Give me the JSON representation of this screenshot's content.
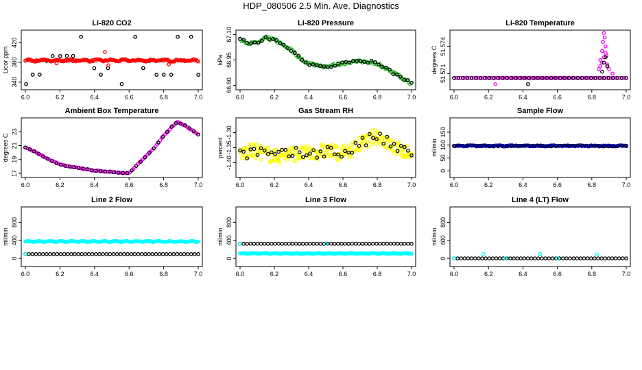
{
  "page": {
    "title": "HDP_080506  2.5 Min. Ave. Diagnostics"
  },
  "colors": {
    "black": "#000000",
    "red": "#ff0000",
    "green": "#22bb22",
    "magenta": "#ff00ff",
    "yellow": "#ffff00",
    "blue": "#0000dd",
    "cyan": "#00ffff"
  },
  "chart_data": [
    {
      "type": "scatter",
      "title": "Li-820 CO2",
      "xlabel": "",
      "ylabel": "Licor ppm",
      "xlim": [
        6.0,
        7.0
      ],
      "ylim": [
        330,
        440
      ],
      "xticks": [
        "6.0",
        "6.2",
        "6.4",
        "6.6",
        "6.8",
        "7.0"
      ],
      "yticks": [
        {
          "v": 340,
          "label": "340"
        },
        {
          "v": 380,
          "label": "380"
        },
        {
          "v": 420,
          "label": "420"
        }
      ],
      "series": [
        {
          "name": "black",
          "color": "black",
          "gen": "levels",
          "levels": [
            336,
            355,
            368,
            383,
            393,
            432
          ],
          "step": 0.04,
          "jitter": 0.6
        },
        {
          "name": "red",
          "color": "red",
          "gen": "band",
          "base": 384,
          "amp": 1.2,
          "noise": 1.5,
          "n": 160
        },
        {
          "name": "red-outliers",
          "color": "red",
          "gen": "points",
          "points": [
            [
              6.46,
              401
            ],
            [
              6.48,
              374
            ],
            [
              6.83,
              376
            ],
            [
              6.18,
              378
            ]
          ]
        }
      ]
    },
    {
      "type": "scatter",
      "title": "Li-820 Pressure",
      "xlabel": "",
      "ylabel": "kPa",
      "xlim": [
        6.0,
        7.0
      ],
      "ylim": [
        66.79,
        67.11
      ],
      "xticks": [
        "6.0",
        "6.2",
        "6.4",
        "6.6",
        "6.8",
        "7.0"
      ],
      "yticks": [
        {
          "v": 66.8,
          "label": "66.80"
        },
        {
          "v": 66.95,
          "label": "66.95"
        },
        {
          "v": 67.1,
          "label": "67.10"
        }
      ],
      "series": [
        {
          "name": "green",
          "color": "green",
          "gen": "curve",
          "n": 120,
          "noise": 0.008,
          "curve": [
            [
              6.0,
              67.07
            ],
            [
              6.05,
              67.05
            ],
            [
              6.1,
              67.05
            ],
            [
              6.15,
              67.08
            ],
            [
              6.2,
              67.07
            ],
            [
              6.25,
              67.04
            ],
            [
              6.3,
              67.01
            ],
            [
              6.35,
              66.96
            ],
            [
              6.4,
              66.93
            ],
            [
              6.45,
              66.92
            ],
            [
              6.5,
              66.91
            ],
            [
              6.55,
              66.92
            ],
            [
              6.6,
              66.93
            ],
            [
              6.65,
              66.94
            ],
            [
              6.7,
              66.94
            ],
            [
              6.75,
              66.94
            ],
            [
              6.8,
              66.93
            ],
            [
              6.85,
              66.9
            ],
            [
              6.9,
              66.87
            ],
            [
              6.95,
              66.84
            ],
            [
              7.0,
              66.81
            ]
          ]
        },
        {
          "name": "black",
          "color": "black",
          "gen": "curve",
          "n": 48,
          "noise": 0.006,
          "offset": 0.01,
          "curve": [
            [
              6.0,
              67.07
            ],
            [
              6.05,
              67.05
            ],
            [
              6.1,
              67.05
            ],
            [
              6.15,
              67.08
            ],
            [
              6.2,
              67.07
            ],
            [
              6.25,
              67.04
            ],
            [
              6.3,
              67.01
            ],
            [
              6.35,
              66.96
            ],
            [
              6.4,
              66.93
            ],
            [
              6.45,
              66.92
            ],
            [
              6.5,
              66.91
            ],
            [
              6.55,
              66.92
            ],
            [
              6.6,
              66.93
            ],
            [
              6.65,
              66.94
            ],
            [
              6.7,
              66.94
            ],
            [
              6.75,
              66.94
            ],
            [
              6.8,
              66.93
            ],
            [
              6.85,
              66.9
            ],
            [
              6.9,
              66.87
            ],
            [
              6.95,
              66.84
            ],
            [
              7.0,
              66.81
            ]
          ]
        }
      ]
    },
    {
      "type": "scatter",
      "title": "Li-820 Temperature",
      "xlabel": "",
      "ylabel": "degrees C",
      "xlim": [
        6.0,
        7.0
      ],
      "ylim": [
        51.5695,
        51.5755
      ],
      "xticks": [
        "6.0",
        "6.2",
        "6.4",
        "6.6",
        "6.8",
        "7.0"
      ],
      "yticks": [
        {
          "v": 51.571,
          "label": "51.571"
        },
        {
          "v": 51.574,
          "label": "51.574"
        }
      ],
      "series": [
        {
          "name": "magenta",
          "color": "magenta",
          "gen": "band",
          "base": 51.5705,
          "amp": 0,
          "noise": 0,
          "n": 80
        },
        {
          "name": "black",
          "color": "black",
          "gen": "band",
          "base": 51.5705,
          "amp": 0,
          "noise": 0,
          "n": 40
        },
        {
          "name": "magenta-spike",
          "color": "magenta",
          "gen": "points",
          "points": [
            [
              6.84,
              51.5715
            ],
            [
              6.85,
              51.5725
            ],
            [
              6.86,
              51.5735
            ],
            [
              6.865,
              51.5745
            ],
            [
              6.87,
              51.5755
            ],
            [
              6.875,
              51.575
            ],
            [
              6.88,
              51.574
            ],
            [
              6.885,
              51.573
            ],
            [
              6.89,
              51.572
            ],
            [
              6.9,
              51.5715
            ],
            [
              6.87,
              51.5728
            ],
            [
              6.86,
              51.5722
            ],
            [
              6.88,
              51.5733
            ],
            [
              6.92,
              51.571
            ],
            [
              6.24,
              51.5698
            ],
            [
              6.85,
              51.5718
            ]
          ]
        },
        {
          "name": "black-spike",
          "color": "black",
          "gen": "points",
          "points": [
            [
              6.86,
              51.5712
            ],
            [
              6.87,
              51.5722
            ],
            [
              6.88,
              51.5728
            ],
            [
              6.89,
              51.5718
            ],
            [
              6.43,
              51.5698
            ]
          ]
        }
      ]
    },
    {
      "type": "scatter",
      "title": "Ambient Box Temperature",
      "xlabel": "",
      "ylabel": "degrees C",
      "xlim": [
        6.0,
        7.0
      ],
      "ylim": [
        16.8,
        24.6
      ],
      "xticks": [
        "6.0",
        "6.2",
        "6.4",
        "6.6",
        "6.8",
        "7.0"
      ],
      "yticks": [
        {
          "v": 17,
          "label": "17"
        },
        {
          "v": 19,
          "label": "19"
        },
        {
          "v": 21,
          "label": "21"
        },
        {
          "v": 23,
          "label": "23"
        }
      ],
      "series": [
        {
          "name": "magenta",
          "color": "magenta",
          "gen": "curve",
          "n": 110,
          "noise": 0.05,
          "curve": [
            [
              6.0,
              20.7
            ],
            [
              6.05,
              20.2
            ],
            [
              6.1,
              19.5
            ],
            [
              6.15,
              18.8
            ],
            [
              6.2,
              18.3
            ],
            [
              6.25,
              18.0
            ],
            [
              6.3,
              17.8
            ],
            [
              6.35,
              17.6
            ],
            [
              6.4,
              17.4
            ],
            [
              6.45,
              17.3
            ],
            [
              6.5,
              17.2
            ],
            [
              6.55,
              17.1
            ],
            [
              6.6,
              17.0
            ],
            [
              6.65,
              18.3
            ],
            [
              6.7,
              19.5
            ],
            [
              6.75,
              20.8
            ],
            [
              6.8,
              22.4
            ],
            [
              6.85,
              23.8
            ],
            [
              6.88,
              24.4
            ],
            [
              6.93,
              23.8
            ],
            [
              7.0,
              22.6
            ]
          ]
        },
        {
          "name": "black",
          "color": "black",
          "gen": "curve",
          "n": 40,
          "noise": 0.04,
          "curve": [
            [
              6.0,
              20.7
            ],
            [
              6.05,
              20.2
            ],
            [
              6.1,
              19.5
            ],
            [
              6.15,
              18.8
            ],
            [
              6.2,
              18.3
            ],
            [
              6.25,
              18.0
            ],
            [
              6.3,
              17.8
            ],
            [
              6.35,
              17.6
            ],
            [
              6.4,
              17.4
            ],
            [
              6.45,
              17.3
            ],
            [
              6.5,
              17.2
            ],
            [
              6.55,
              17.1
            ],
            [
              6.6,
              17.0
            ],
            [
              6.65,
              18.3
            ],
            [
              6.7,
              19.5
            ],
            [
              6.75,
              20.8
            ],
            [
              6.8,
              22.4
            ],
            [
              6.85,
              23.8
            ],
            [
              6.88,
              24.4
            ],
            [
              6.93,
              23.8
            ],
            [
              7.0,
              22.6
            ]
          ]
        }
      ]
    },
    {
      "type": "scatter",
      "title": "Gas Stream RH",
      "xlabel": "",
      "ylabel": "percent",
      "xlim": [
        6.0,
        7.0
      ],
      "ylim": [
        -1.44,
        -1.26
      ],
      "xticks": [
        "6.0",
        "6.2",
        "6.4",
        "6.6",
        "6.8",
        "7.0"
      ],
      "yticks": [
        {
          "v": -1.4,
          "label": "-1.40"
        },
        {
          "v": -1.35,
          "label": "-1.35"
        },
        {
          "v": -1.3,
          "label": "-1.30"
        }
      ],
      "series": [
        {
          "name": "yellow",
          "color": "yellow",
          "gen": "curve",
          "n": 260,
          "noise": 0.025,
          "curve": [
            [
              6.0,
              -1.37
            ],
            [
              6.1,
              -1.36
            ],
            [
              6.2,
              -1.38
            ],
            [
              6.3,
              -1.37
            ],
            [
              6.4,
              -1.37
            ],
            [
              6.5,
              -1.36
            ],
            [
              6.6,
              -1.37
            ],
            [
              6.7,
              -1.34
            ],
            [
              6.8,
              -1.31
            ],
            [
              6.9,
              -1.35
            ],
            [
              7.0,
              -1.37
            ]
          ]
        },
        {
          "name": "black",
          "color": "black",
          "gen": "curve",
          "n": 50,
          "noise": 0.02,
          "curve": [
            [
              6.0,
              -1.37
            ],
            [
              6.1,
              -1.36
            ],
            [
              6.2,
              -1.38
            ],
            [
              6.3,
              -1.37
            ],
            [
              6.4,
              -1.37
            ],
            [
              6.5,
              -1.36
            ],
            [
              6.6,
              -1.37
            ],
            [
              6.7,
              -1.34
            ],
            [
              6.8,
              -1.31
            ],
            [
              6.9,
              -1.35
            ],
            [
              7.0,
              -1.37
            ]
          ]
        }
      ]
    },
    {
      "type": "scatter",
      "title": "Sample Flow",
      "xlabel": "",
      "ylabel": "ml/min",
      "xlim": [
        6.0,
        7.0
      ],
      "ylim": [
        -15,
        195
      ],
      "xticks": [
        "6.0",
        "6.2",
        "6.4",
        "6.6",
        "6.8",
        "7.0"
      ],
      "yticks": [
        {
          "v": 0,
          "label": "0"
        },
        {
          "v": 50,
          "label": "50"
        },
        {
          "v": 100,
          "label": "100"
        },
        {
          "v": 150,
          "label": "150"
        }
      ],
      "series": [
        {
          "name": "blue",
          "color": "blue",
          "gen": "band",
          "base": 97,
          "amp": 1,
          "noise": 1.5,
          "n": 160
        },
        {
          "name": "black",
          "color": "black",
          "gen": "band",
          "base": 97,
          "amp": 1,
          "noise": 1,
          "n": 40
        }
      ]
    },
    {
      "type": "scatter",
      "title": "Line 2 Flow",
      "xlabel": "",
      "ylabel": "ml/min",
      "xlim": [
        6.0,
        7.0
      ],
      "ylim": [
        -120,
        1080
      ],
      "xticks": [
        "6.0",
        "6.2",
        "6.4",
        "6.6",
        "6.8",
        "7.0"
      ],
      "yticks": [
        {
          "v": 0,
          "label": "0"
        },
        {
          "v": 400,
          "label": "400"
        },
        {
          "v": 800,
          "label": "800"
        }
      ],
      "series": [
        {
          "name": "cyan",
          "color": "cyan",
          "gen": "band",
          "base": 375,
          "amp": 8,
          "noise": 5,
          "n": 200
        },
        {
          "name": "black",
          "color": "black",
          "gen": "band",
          "base": 95,
          "amp": 0,
          "noise": 1,
          "n": 50
        },
        {
          "name": "cyan-low",
          "color": "cyan",
          "gen": "points",
          "points": [
            [
              6.0,
              95
            ]
          ]
        }
      ]
    },
    {
      "type": "scatter",
      "title": "Line 3 Flow",
      "xlabel": "",
      "ylabel": "ml/min",
      "xlim": [
        6.0,
        7.0
      ],
      "ylim": [
        -120,
        1080
      ],
      "xticks": [
        "6.0",
        "6.2",
        "6.4",
        "6.6",
        "6.8",
        "7.0"
      ],
      "yticks": [
        {
          "v": 0,
          "label": "0"
        },
        {
          "v": 400,
          "label": "400"
        },
        {
          "v": 800,
          "label": "800"
        }
      ],
      "series": [
        {
          "name": "cyan",
          "color": "cyan",
          "gen": "band",
          "base": 110,
          "amp": 6,
          "noise": 4,
          "n": 200
        },
        {
          "name": "black",
          "color": "black",
          "gen": "band",
          "base": 325,
          "amp": 0,
          "noise": 1.5,
          "n": 50
        },
        {
          "name": "cyan-high",
          "color": "cyan",
          "gen": "points",
          "points": [
            [
              6.0,
              325
            ],
            [
              6.5,
              330
            ]
          ]
        }
      ]
    },
    {
      "type": "scatter",
      "title": "Line 4 (LT) Flow",
      "xlabel": "",
      "ylabel": "ml/min",
      "xlim": [
        6.0,
        7.0
      ],
      "ylim": [
        -120,
        1080
      ],
      "xticks": [
        "6.0",
        "6.2",
        "6.4",
        "6.6",
        "6.8",
        "7.0"
      ],
      "yticks": [
        {
          "v": 0,
          "label": "0"
        },
        {
          "v": 400,
          "label": "400"
        },
        {
          "v": 800,
          "label": "800"
        }
      ],
      "series": [
        {
          "name": "black",
          "color": "black",
          "gen": "band",
          "base": 0,
          "amp": 0,
          "noise": 0,
          "n": 50
        },
        {
          "name": "cyan",
          "color": "cyan",
          "gen": "points",
          "points": [
            [
              6.0,
              2
            ],
            [
              6.17,
              95
            ],
            [
              6.5,
              95
            ],
            [
              6.83,
              90
            ],
            [
              6.3,
              2
            ],
            [
              6.6,
              2
            ]
          ]
        }
      ]
    }
  ]
}
